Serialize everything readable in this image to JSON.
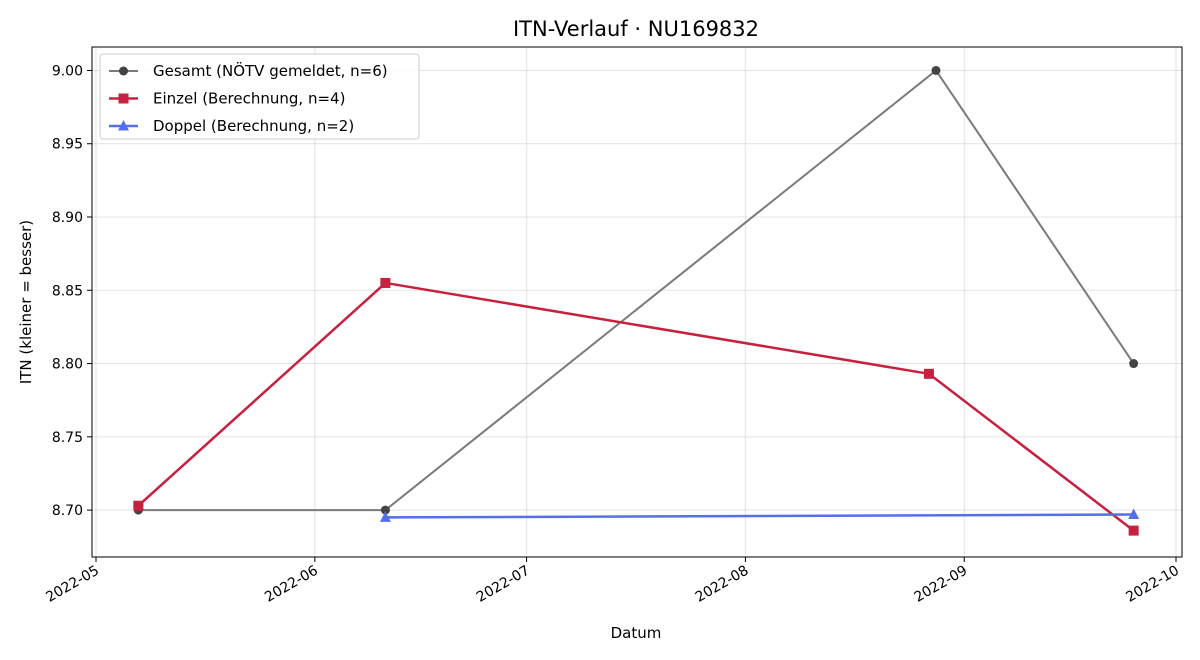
{
  "chart_data": {
    "type": "line",
    "title": "ITN-Verlauf · NU169832",
    "xlabel": "Datum",
    "ylabel": "ITN  (kleiner = besser)",
    "x_axis": "date",
    "xlim": [
      "2022-05-01",
      "2022-10-01"
    ],
    "ylim": [
      8.668,
      9.016
    ],
    "x_ticks": [
      {
        "date": "2022-05-01",
        "label": "2022-05"
      },
      {
        "date": "2022-06-01",
        "label": "2022-06"
      },
      {
        "date": "2022-07-01",
        "label": "2022-07"
      },
      {
        "date": "2022-08-01",
        "label": "2022-08"
      },
      {
        "date": "2022-09-01",
        "label": "2022-09"
      },
      {
        "date": "2022-10-01",
        "label": "2022-10"
      }
    ],
    "y_ticks": [
      {
        "value": 8.7,
        "label": "8.70"
      },
      {
        "value": 8.75,
        "label": "8.75"
      },
      {
        "value": 8.8,
        "label": "8.80"
      },
      {
        "value": 8.85,
        "label": "8.85"
      },
      {
        "value": 8.9,
        "label": "8.90"
      },
      {
        "value": 8.95,
        "label": "8.95"
      },
      {
        "value": 9.0,
        "label": "9.00"
      }
    ],
    "grid": true,
    "legend_position": "top-left",
    "series": [
      {
        "name": "Gesamt (NÖTV gemeldet, n=6)",
        "color": "#7a7a7a",
        "marker_color": "#444444",
        "marker": "circle",
        "points": [
          {
            "x": "2022-05-07",
            "y": 8.7
          },
          {
            "x": "2022-06-11",
            "y": 8.7
          },
          {
            "x": "2022-08-28",
            "y": 9.0
          },
          {
            "x": "2022-09-25",
            "y": 8.8
          }
        ]
      },
      {
        "name": "Einzel (Berechnung, n=4)",
        "color": "#c8203f",
        "marker_color": "#c8203f",
        "marker": "square",
        "points": [
          {
            "x": "2022-05-07",
            "y": 8.703
          },
          {
            "x": "2022-06-11",
            "y": 8.855
          },
          {
            "x": "2022-08-27",
            "y": 8.793
          },
          {
            "x": "2022-09-25",
            "y": 8.686
          }
        ]
      },
      {
        "name": "Doppel (Berechnung, n=2)",
        "color": "#5470e6",
        "marker_color": "#5470e6",
        "marker": "triangle",
        "points": [
          {
            "x": "2022-06-11",
            "y": 8.695
          },
          {
            "x": "2022-09-25",
            "y": 8.697
          }
        ]
      }
    ]
  }
}
